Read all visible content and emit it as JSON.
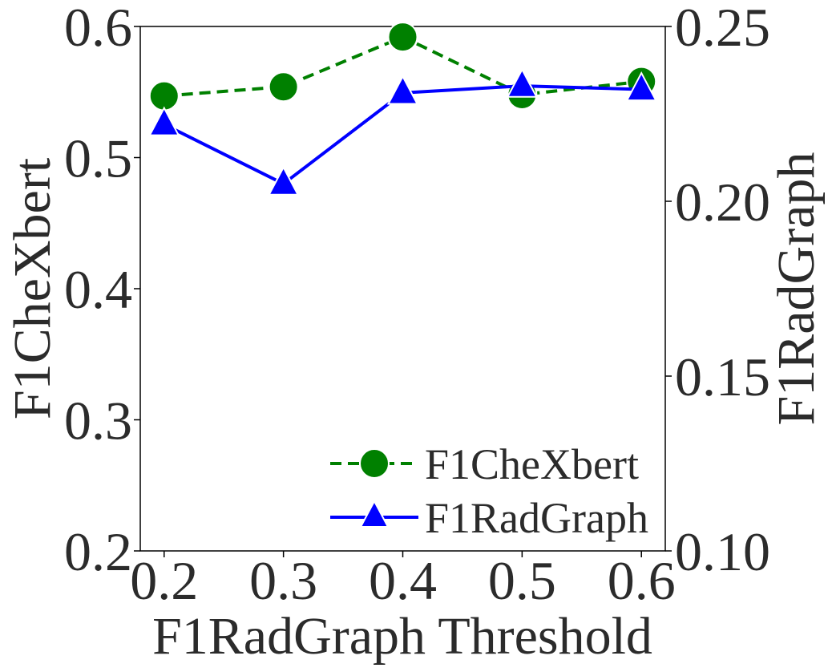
{
  "chart_data": {
    "type": "line",
    "title": "",
    "xlabel": "F1RadGraph Threshold",
    "ylabel_left": "F1CheXbert",
    "ylabel_right": "F1RadGraph",
    "x": [
      0.2,
      0.3,
      0.4,
      0.5,
      0.6
    ],
    "x_tick_labels": [
      "0.2",
      "0.3",
      "0.4",
      "0.5",
      "0.6"
    ],
    "xlim": [
      0.18,
      0.62
    ],
    "ylim_left": [
      0.2,
      0.6
    ],
    "ylim_right": [
      0.1,
      0.25
    ],
    "y_ticks_left": [
      "0.2",
      "0.3",
      "0.4",
      "0.5",
      "0.6"
    ],
    "y_ticks_right": [
      "0.10",
      "0.15",
      "0.20",
      "0.25"
    ],
    "grid": false,
    "legend_position": "lower-right",
    "series": [
      {
        "name": "F1CheXbert",
        "axis": "left",
        "values": [
          0.547,
          0.554,
          0.592,
          0.548,
          0.558
        ],
        "color": "#008000",
        "line_style": "dashed",
        "marker": "circle"
      },
      {
        "name": "F1RadGraph",
        "axis": "right",
        "values": [
          0.222,
          0.205,
          0.231,
          0.233,
          0.232
        ],
        "color": "#0000ff",
        "line_style": "solid",
        "marker": "triangle"
      }
    ]
  }
}
